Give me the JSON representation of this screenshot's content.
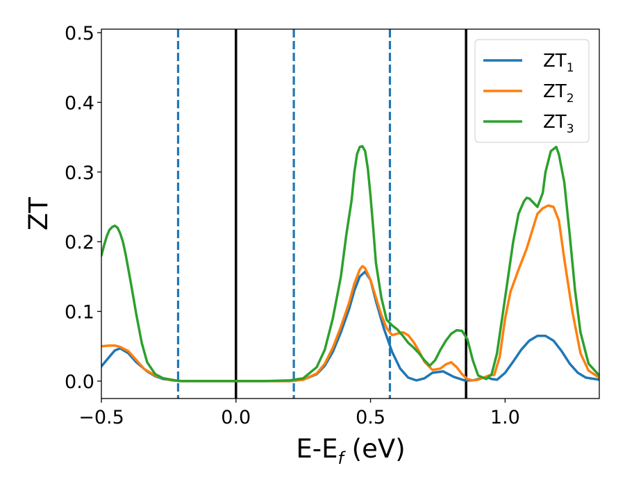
{
  "chart_data": {
    "type": "line",
    "xlabel": "E-E",
    "xlabel_sub": "f",
    "xlabel_unit": " (eV)",
    "ylabel": "ZT",
    "xlim": [
      -0.5,
      1.35
    ],
    "ylim": [
      -0.025,
      0.505
    ],
    "xticks": [
      -0.5,
      0.0,
      0.5,
      1.0
    ],
    "xtick_labels": [
      "−0.5",
      "0.0",
      "0.5",
      "1.0"
    ],
    "yticks": [
      0.0,
      0.1,
      0.2,
      0.3,
      0.4,
      0.5
    ],
    "ytick_labels": [
      "0.0",
      "0.1",
      "0.2",
      "0.3",
      "0.4",
      "0.5"
    ],
    "grid": false,
    "legend_position": "top-right",
    "vlines": [
      {
        "x": -0.215,
        "style": "dashed",
        "color": "#1f77b4"
      },
      {
        "x": 0.0,
        "style": "solid",
        "color": "#000000"
      },
      {
        "x": 0.215,
        "style": "dashed",
        "color": "#1f77b4"
      },
      {
        "x": 0.572,
        "style": "dashed",
        "color": "#1f77b4"
      },
      {
        "x": 0.855,
        "style": "solid",
        "color": "#000000"
      }
    ],
    "series": [
      {
        "name": "ZT",
        "sub": "1",
        "color": "#1f77b4",
        "x": [
          -0.5,
          -0.47,
          -0.45,
          -0.43,
          -0.4,
          -0.37,
          -0.33,
          -0.3,
          -0.27,
          -0.23,
          -0.2,
          -0.1,
          0.0,
          0.1,
          0.2,
          0.25,
          0.3,
          0.33,
          0.36,
          0.39,
          0.42,
          0.44,
          0.46,
          0.48,
          0.5,
          0.52,
          0.55,
          0.58,
          0.61,
          0.64,
          0.67,
          0.7,
          0.73,
          0.77,
          0.81,
          0.85,
          0.88,
          0.91,
          0.93,
          0.95,
          0.97,
          1.0,
          1.03,
          1.06,
          1.09,
          1.12,
          1.15,
          1.18,
          1.21,
          1.24,
          1.27,
          1.3,
          1.35
        ],
        "y": [
          0.021,
          0.035,
          0.044,
          0.047,
          0.04,
          0.027,
          0.014,
          0.007,
          0.003,
          0.001,
          0.0,
          0.0,
          0.0,
          0.0,
          0.0,
          0.002,
          0.01,
          0.022,
          0.042,
          0.07,
          0.103,
          0.13,
          0.15,
          0.157,
          0.145,
          0.115,
          0.075,
          0.042,
          0.018,
          0.005,
          0.001,
          0.004,
          0.012,
          0.014,
          0.006,
          0.001,
          0.001,
          0.004,
          0.006,
          0.003,
          0.002,
          0.012,
          0.028,
          0.045,
          0.058,
          0.065,
          0.065,
          0.058,
          0.043,
          0.025,
          0.012,
          0.005,
          0.002
        ]
      },
      {
        "name": "ZT",
        "sub": "2",
        "color": "#ff7f0e",
        "x": [
          -0.5,
          -0.47,
          -0.45,
          -0.43,
          -0.4,
          -0.37,
          -0.34,
          -0.3,
          -0.27,
          -0.24,
          -0.2,
          -0.1,
          0.0,
          0.1,
          0.2,
          0.25,
          0.3,
          0.33,
          0.36,
          0.39,
          0.42,
          0.44,
          0.46,
          0.47,
          0.48,
          0.5,
          0.52,
          0.54,
          0.56,
          0.58,
          0.6,
          0.62,
          0.64,
          0.66,
          0.68,
          0.7,
          0.73,
          0.76,
          0.78,
          0.8,
          0.82,
          0.84,
          0.86,
          0.88,
          0.9,
          0.92,
          0.94,
          0.96,
          0.98,
          1.0,
          1.02,
          1.05,
          1.08,
          1.1,
          1.12,
          1.14,
          1.16,
          1.18,
          1.2,
          1.22,
          1.25,
          1.28,
          1.31,
          1.35
        ],
        "y": [
          0.05,
          0.051,
          0.051,
          0.049,
          0.043,
          0.03,
          0.017,
          0.008,
          0.004,
          0.001,
          0.0,
          0.0,
          0.0,
          0.0,
          0.0,
          0.002,
          0.011,
          0.025,
          0.048,
          0.078,
          0.112,
          0.14,
          0.16,
          0.165,
          0.162,
          0.145,
          0.12,
          0.095,
          0.076,
          0.066,
          0.068,
          0.07,
          0.066,
          0.056,
          0.043,
          0.028,
          0.016,
          0.018,
          0.024,
          0.027,
          0.02,
          0.01,
          0.003,
          0.001,
          0.002,
          0.005,
          0.008,
          0.009,
          0.035,
          0.09,
          0.128,
          0.16,
          0.19,
          0.215,
          0.24,
          0.248,
          0.252,
          0.25,
          0.23,
          0.175,
          0.1,
          0.04,
          0.015,
          0.005
        ]
      },
      {
        "name": "ZT",
        "sub": "3",
        "color": "#2ca02c",
        "x": [
          -0.5,
          -0.49,
          -0.48,
          -0.47,
          -0.46,
          -0.45,
          -0.44,
          -0.43,
          -0.42,
          -0.41,
          -0.39,
          -0.37,
          -0.35,
          -0.33,
          -0.3,
          -0.27,
          -0.24,
          -0.21,
          -0.15,
          -0.1,
          0.0,
          0.1,
          0.2,
          0.25,
          0.3,
          0.33,
          0.36,
          0.39,
          0.41,
          0.43,
          0.44,
          0.45,
          0.46,
          0.47,
          0.48,
          0.49,
          0.5,
          0.51,
          0.52,
          0.54,
          0.56,
          0.58,
          0.6,
          0.62,
          0.64,
          0.66,
          0.68,
          0.7,
          0.72,
          0.74,
          0.76,
          0.78,
          0.8,
          0.82,
          0.84,
          0.86,
          0.88,
          0.9,
          0.93,
          0.95,
          0.97,
          1.0,
          1.03,
          1.05,
          1.07,
          1.08,
          1.09,
          1.1,
          1.12,
          1.14,
          1.15,
          1.17,
          1.19,
          1.2,
          1.22,
          1.24,
          1.26,
          1.28,
          1.31,
          1.35
        ],
        "y": [
          0.18,
          0.195,
          0.208,
          0.217,
          0.221,
          0.223,
          0.22,
          0.212,
          0.2,
          0.182,
          0.14,
          0.095,
          0.055,
          0.027,
          0.01,
          0.004,
          0.002,
          0.0,
          0.0,
          0.0,
          0.0,
          0.0,
          0.001,
          0.004,
          0.02,
          0.045,
          0.09,
          0.15,
          0.21,
          0.26,
          0.3,
          0.326,
          0.336,
          0.337,
          0.33,
          0.305,
          0.265,
          0.22,
          0.17,
          0.12,
          0.088,
          0.08,
          0.074,
          0.065,
          0.055,
          0.048,
          0.04,
          0.03,
          0.022,
          0.03,
          0.045,
          0.058,
          0.068,
          0.073,
          0.072,
          0.06,
          0.03,
          0.008,
          0.003,
          0.01,
          0.04,
          0.12,
          0.2,
          0.24,
          0.258,
          0.263,
          0.262,
          0.258,
          0.25,
          0.27,
          0.3,
          0.33,
          0.336,
          0.325,
          0.285,
          0.21,
          0.13,
          0.07,
          0.025,
          0.008
        ]
      }
    ]
  }
}
